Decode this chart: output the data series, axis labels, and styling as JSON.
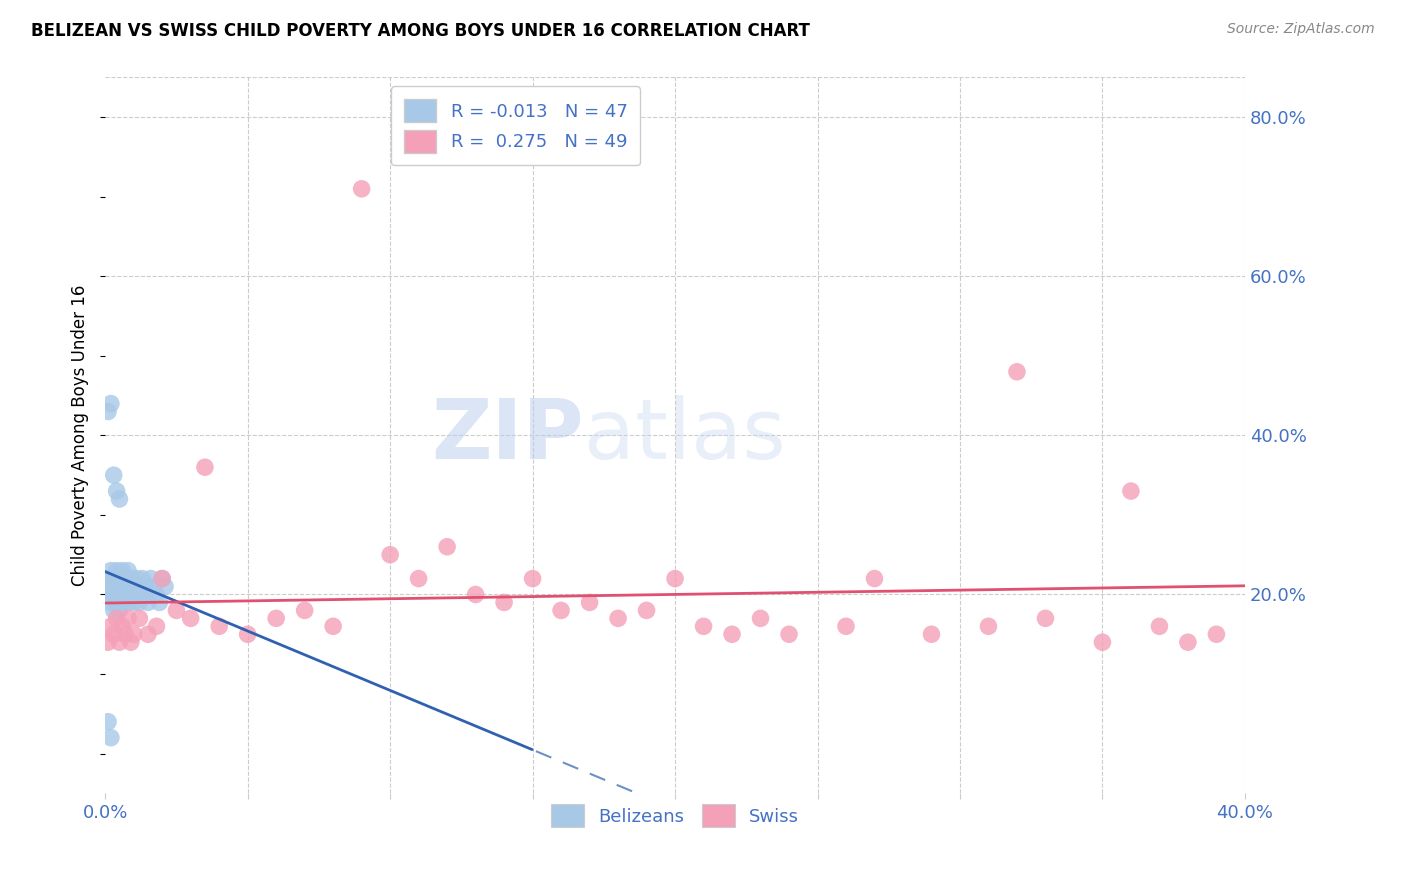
{
  "title": "BELIZEAN VS SWISS CHILD POVERTY AMONG BOYS UNDER 16 CORRELATION CHART",
  "source": "Source: ZipAtlas.com",
  "ylabel": "Child Poverty Among Boys Under 16",
  "xmin": 0.0,
  "xmax": 0.4,
  "ymin": -0.05,
  "ymax": 0.85,
  "yticks_right": [
    0.2,
    0.4,
    0.6,
    0.8
  ],
  "ytick_labels_right": [
    "20.0%",
    "40.0%",
    "60.0%",
    "80.0%"
  ],
  "belizean_R": "-0.013",
  "belizean_N": "47",
  "swiss_R": "0.275",
  "swiss_N": "49",
  "belizean_color": "#a8c8e8",
  "swiss_color": "#f4a0b8",
  "belizean_line_color": "#3060b0",
  "swiss_line_color": "#e05070",
  "legend_text_color": "#4472c4",
  "grid_color": "#cccccc",
  "background_color": "#ffffff",
  "belizean_x": [
    0.001,
    0.001,
    0.002,
    0.002,
    0.002,
    0.003,
    0.003,
    0.003,
    0.004,
    0.004,
    0.004,
    0.005,
    0.005,
    0.005,
    0.006,
    0.006,
    0.006,
    0.007,
    0.007,
    0.008,
    0.008,
    0.008,
    0.009,
    0.009,
    0.01,
    0.01,
    0.011,
    0.011,
    0.012,
    0.012,
    0.013,
    0.014,
    0.014,
    0.015,
    0.016,
    0.017,
    0.018,
    0.019,
    0.02,
    0.021,
    0.001,
    0.002,
    0.003,
    0.004,
    0.005,
    0.001,
    0.002
  ],
  "belizean_y": [
    0.22,
    0.2,
    0.21,
    0.19,
    0.23,
    0.2,
    0.22,
    0.18,
    0.21,
    0.19,
    0.23,
    0.2,
    0.22,
    0.18,
    0.21,
    0.19,
    0.23,
    0.2,
    0.22,
    0.21,
    0.19,
    0.23,
    0.2,
    0.22,
    0.21,
    0.19,
    0.22,
    0.2,
    0.21,
    0.19,
    0.22,
    0.2,
    0.21,
    0.19,
    0.22,
    0.21,
    0.2,
    0.19,
    0.22,
    0.21,
    0.43,
    0.44,
    0.35,
    0.33,
    0.32,
    0.04,
    0.02
  ],
  "swiss_x": [
    0.001,
    0.002,
    0.003,
    0.004,
    0.005,
    0.006,
    0.007,
    0.008,
    0.009,
    0.01,
    0.012,
    0.015,
    0.018,
    0.02,
    0.025,
    0.03,
    0.035,
    0.04,
    0.05,
    0.06,
    0.07,
    0.08,
    0.09,
    0.1,
    0.11,
    0.12,
    0.13,
    0.14,
    0.15,
    0.16,
    0.17,
    0.18,
    0.19,
    0.2,
    0.21,
    0.22,
    0.23,
    0.24,
    0.26,
    0.27,
    0.29,
    0.31,
    0.32,
    0.33,
    0.35,
    0.36,
    0.37,
    0.38,
    0.39
  ],
  "swiss_y": [
    0.14,
    0.16,
    0.15,
    0.17,
    0.14,
    0.16,
    0.15,
    0.17,
    0.14,
    0.15,
    0.17,
    0.15,
    0.16,
    0.22,
    0.18,
    0.17,
    0.36,
    0.16,
    0.15,
    0.17,
    0.18,
    0.16,
    0.71,
    0.25,
    0.22,
    0.26,
    0.2,
    0.19,
    0.22,
    0.18,
    0.19,
    0.17,
    0.18,
    0.22,
    0.16,
    0.15,
    0.17,
    0.15,
    0.16,
    0.22,
    0.15,
    0.16,
    0.48,
    0.17,
    0.14,
    0.33,
    0.16,
    0.14,
    0.15
  ]
}
